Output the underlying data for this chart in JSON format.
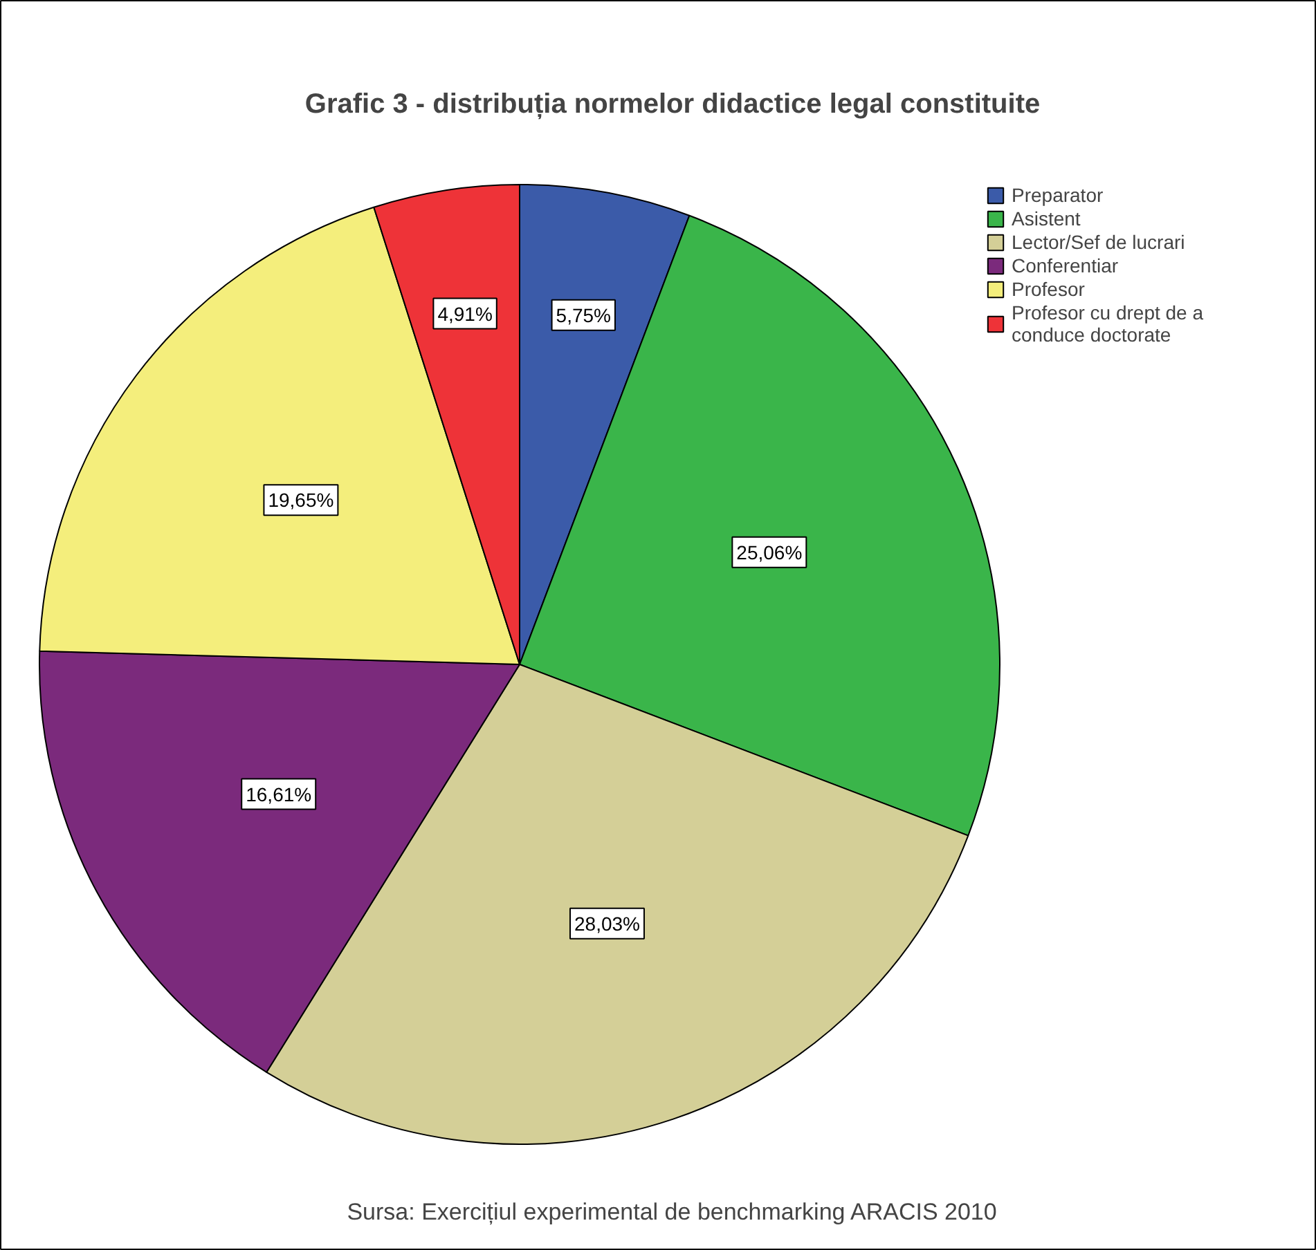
{
  "chart_data": {
    "type": "pie",
    "title": "Grafic 3 - distribuția normelor didactice legal constituite",
    "categories": [
      "Preparator",
      "Asistent",
      "Lector/Sef de lucrari",
      "Conferentiar",
      "Profesor",
      "Profesor cu drept de a conduce doctorate"
    ],
    "values": [
      5.75,
      25.06,
      28.03,
      16.61,
      19.65,
      4.91
    ],
    "colors": [
      "#3b5ba9",
      "#3ab54a",
      "#d4cf97",
      "#7b2a7c",
      "#f4ee7c",
      "#ee3338"
    ],
    "value_labels": [
      "5,75%",
      "25,06%",
      "28,03%",
      "16,61%",
      "19,65%",
      "4,91%"
    ],
    "legend": "top right",
    "annotations": [
      "Sursa: Exercițiul experimental de benchmarking ARACIS 2010"
    ]
  }
}
